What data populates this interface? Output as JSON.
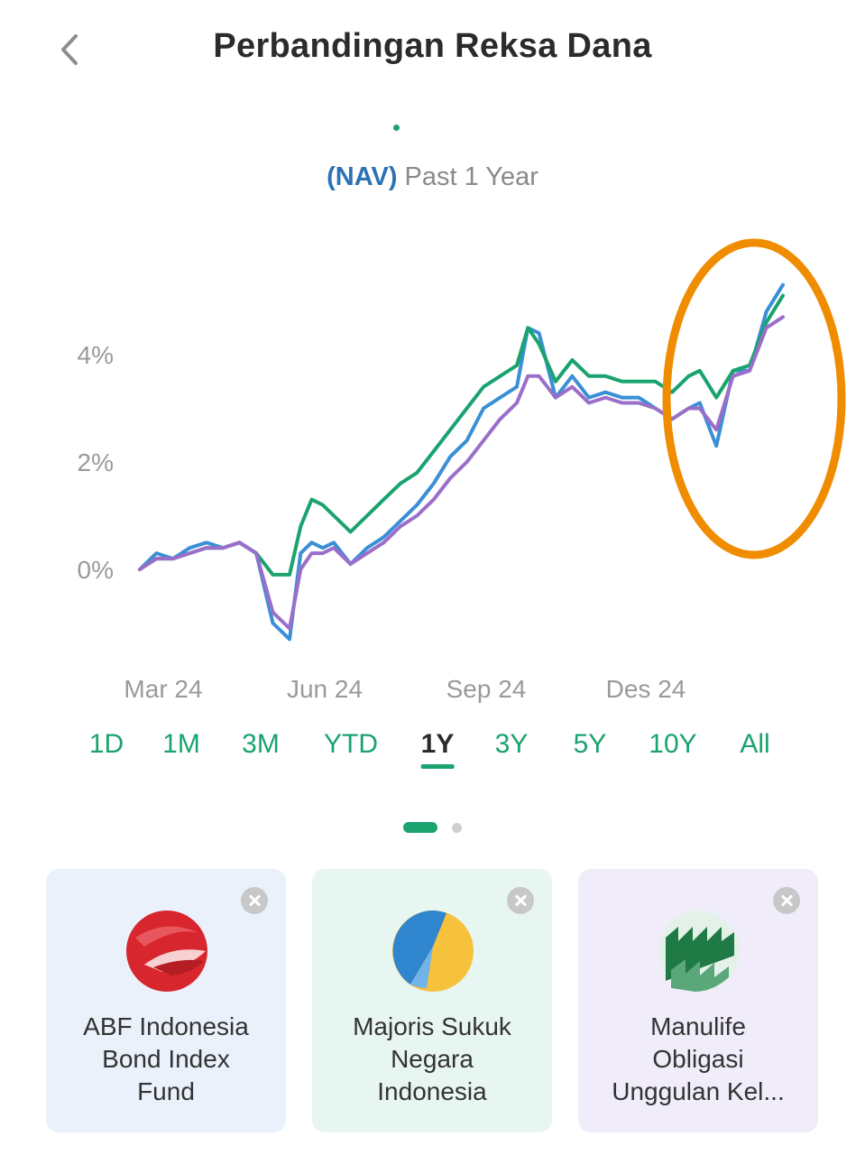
{
  "header": {
    "title": "Perbandingan Reksa Dana"
  },
  "subtitle": {
    "metric": "(NAV)",
    "period": "Past 1 Year"
  },
  "colors": {
    "accent": "#1aa36e",
    "nav_blue": "#2c73b5",
    "annotation": "#f08c00"
  },
  "time_ranges": [
    {
      "label": "1D",
      "active": false
    },
    {
      "label": "1M",
      "active": false
    },
    {
      "label": "3M",
      "active": false
    },
    {
      "label": "YTD",
      "active": false
    },
    {
      "label": "1Y",
      "active": true
    },
    {
      "label": "3Y",
      "active": false
    },
    {
      "label": "5Y",
      "active": false
    },
    {
      "label": "10Y",
      "active": false
    },
    {
      "label": "All",
      "active": false
    }
  ],
  "pager": {
    "pages": 2,
    "current": 1
  },
  "funds": [
    {
      "name_lines": [
        "ABF Indonesia",
        "Bond Index",
        "Fund"
      ],
      "icon": "abf-logo-icon",
      "card_bg": "#eaf1fb"
    },
    {
      "name_lines": [
        "Majoris Sukuk",
        "Negara",
        "Indonesia"
      ],
      "icon": "majoris-logo-icon",
      "card_bg": "#e8f6f1"
    },
    {
      "name_lines": [
        "Manulife",
        "Obligasi",
        "Unggulan Kel..."
      ],
      "icon": "manulife-logo-icon",
      "card_bg": "#f1ecf9"
    }
  ],
  "chart_data": {
    "type": "line",
    "ytick_labels": [
      "4%",
      "2%",
      "0%"
    ],
    "yticks": [
      4,
      2,
      0
    ],
    "xtick_labels": [
      "Mar 24",
      "Jun 24",
      "Sep 24",
      "Des 24"
    ],
    "xticks": [
      0.6,
      3.5,
      6.5,
      9.5
    ],
    "ylim": [
      -1.5,
      6
    ],
    "xlim": [
      0,
      12
    ],
    "grid": false,
    "series": [
      {
        "color": "#3a8fd6",
        "x": [
          0,
          0.3,
          0.6,
          0.9,
          1.2,
          1.5,
          1.8,
          2.1,
          2.4,
          2.7,
          2.9,
          3.1,
          3.3,
          3.5,
          3.8,
          4.1,
          4.4,
          4.7,
          5.0,
          5.3,
          5.6,
          5.9,
          6.2,
          6.5,
          6.8,
          7.0,
          7.2,
          7.5,
          7.8,
          8.1,
          8.4,
          8.7,
          9.0,
          9.3,
          9.6,
          9.9,
          10.1,
          10.4,
          10.7,
          11.0,
          11.3,
          11.6
        ],
        "values": [
          0,
          0.3,
          0.2,
          0.4,
          0.5,
          0.4,
          0.5,
          0.3,
          -1.0,
          -1.3,
          0.3,
          0.5,
          0.4,
          0.5,
          0.1,
          0.4,
          0.6,
          0.9,
          1.2,
          1.6,
          2.1,
          2.4,
          3.0,
          3.2,
          3.4,
          4.5,
          4.4,
          3.2,
          3.6,
          3.2,
          3.3,
          3.2,
          3.2,
          3.0,
          2.8,
          3.0,
          3.1,
          2.3,
          3.7,
          3.7,
          4.8,
          5.3
        ]
      },
      {
        "color": "#1aa36e",
        "x": [
          0,
          0.3,
          0.6,
          0.9,
          1.2,
          1.5,
          1.8,
          2.1,
          2.4,
          2.7,
          2.9,
          3.1,
          3.3,
          3.5,
          3.8,
          4.1,
          4.4,
          4.7,
          5.0,
          5.3,
          5.6,
          5.9,
          6.2,
          6.5,
          6.8,
          7.0,
          7.2,
          7.5,
          7.8,
          8.1,
          8.4,
          8.7,
          9.0,
          9.3,
          9.6,
          9.9,
          10.1,
          10.4,
          10.7,
          11.0,
          11.3,
          11.6
        ],
        "values": [
          0,
          0.2,
          0.2,
          0.3,
          0.4,
          0.4,
          0.5,
          0.3,
          -0.1,
          -0.1,
          0.8,
          1.3,
          1.2,
          1.0,
          0.7,
          1.0,
          1.3,
          1.6,
          1.8,
          2.2,
          2.6,
          3.0,
          3.4,
          3.6,
          3.8,
          4.5,
          4.2,
          3.5,
          3.9,
          3.6,
          3.6,
          3.5,
          3.5,
          3.5,
          3.3,
          3.6,
          3.7,
          3.2,
          3.7,
          3.8,
          4.6,
          5.1
        ]
      },
      {
        "color": "#9b6fc9",
        "x": [
          0,
          0.3,
          0.6,
          0.9,
          1.2,
          1.5,
          1.8,
          2.1,
          2.4,
          2.7,
          2.9,
          3.1,
          3.3,
          3.5,
          3.8,
          4.1,
          4.4,
          4.7,
          5.0,
          5.3,
          5.6,
          5.9,
          6.2,
          6.5,
          6.8,
          7.0,
          7.2,
          7.5,
          7.8,
          8.1,
          8.4,
          8.7,
          9.0,
          9.3,
          9.6,
          9.9,
          10.1,
          10.4,
          10.7,
          11.0,
          11.3,
          11.6
        ],
        "values": [
          0,
          0.2,
          0.2,
          0.3,
          0.4,
          0.4,
          0.5,
          0.3,
          -0.8,
          -1.1,
          0.0,
          0.3,
          0.3,
          0.4,
          0.1,
          0.3,
          0.5,
          0.8,
          1.0,
          1.3,
          1.7,
          2.0,
          2.4,
          2.8,
          3.1,
          3.6,
          3.6,
          3.2,
          3.4,
          3.1,
          3.2,
          3.1,
          3.1,
          3.0,
          2.8,
          3.0,
          3.0,
          2.6,
          3.6,
          3.7,
          4.5,
          4.7
        ]
      }
    ]
  }
}
